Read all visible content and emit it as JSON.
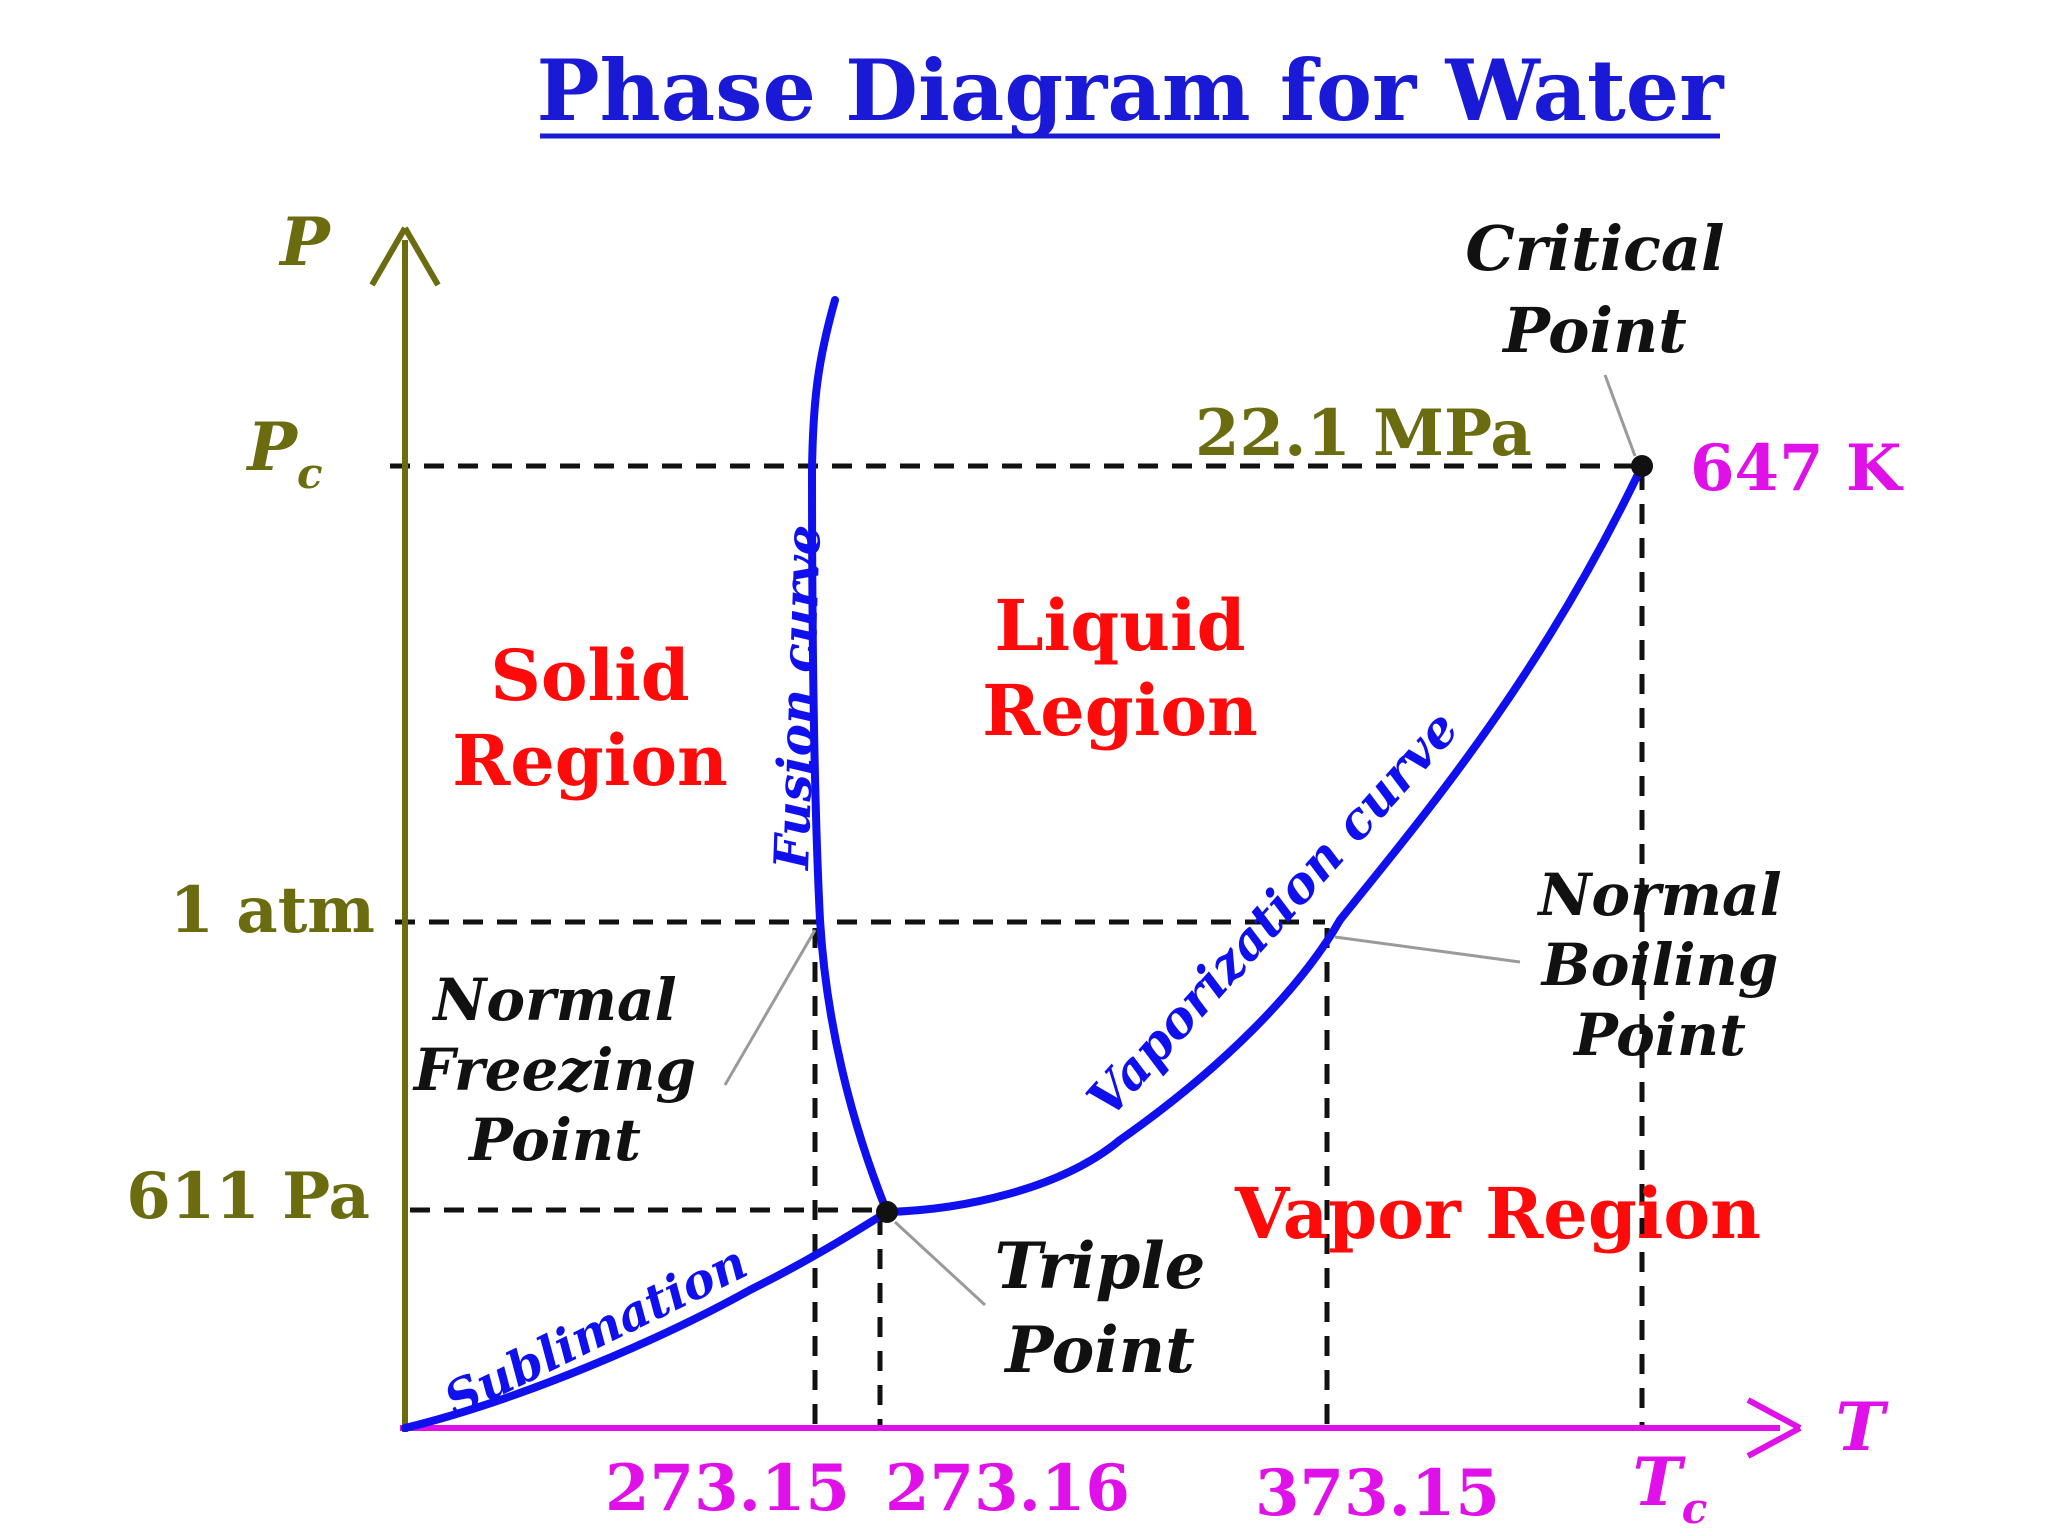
{
  "title": "Phase Diagram for Water",
  "colors": {
    "title": "#1a1ad6",
    "curve": "#1010ee",
    "p_axis": "#6b6b10",
    "t_axis": "#e010e8",
    "region": "#ff0a0a",
    "annotation": "#111111",
    "guide": "#111111",
    "leader": "#9a9a9a"
  },
  "axes": {
    "p_symbol": "P",
    "t_symbol": "T",
    "pc_main": "P",
    "pc_sub": "c",
    "tc_main": "T",
    "tc_sub": "c"
  },
  "pressure_ticks": {
    "one_atm": "1 atm",
    "triple": "611 Pa"
  },
  "temperature_ticks": {
    "freezing": "273.15",
    "triple": "273.16",
    "boiling": "373.15"
  },
  "critical": {
    "pressure": "22.1 MPa",
    "temperature": "647 K"
  },
  "regions": {
    "solid": [
      "Solid",
      "Region"
    ],
    "liquid": [
      "Liquid",
      "Region"
    ],
    "vapor": "Vapor Region"
  },
  "curves": {
    "fusion": "Fusion curve",
    "vaporization": "Vaporization curve",
    "sublimation": "Sublimation"
  },
  "points": {
    "critical": [
      "Critical",
      "Point"
    ],
    "boiling": [
      "Normal",
      "Boiling",
      "Point"
    ],
    "freezing": [
      "Normal",
      "Freezing",
      "Point"
    ],
    "triple": [
      "Triple",
      "Point"
    ]
  }
}
